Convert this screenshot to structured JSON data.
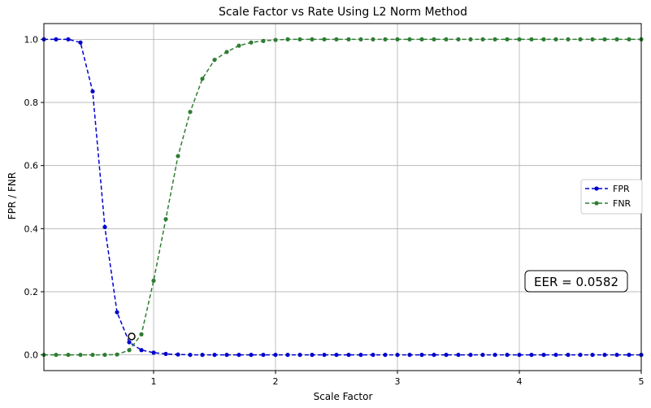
{
  "chart_data": {
    "type": "line",
    "title": "Scale Factor vs Rate Using L2 Norm Method",
    "xlabel": "Scale Factor",
    "ylabel": "FPR / FNR",
    "xlim": [
      0.1,
      5.0
    ],
    "ylim": [
      -0.05,
      1.05
    ],
    "xticks": [
      1,
      2,
      3,
      4,
      5
    ],
    "yticks": [
      0.0,
      0.2,
      0.4,
      0.6,
      0.8,
      1.0
    ],
    "xtick_labels": [
      "1",
      "2",
      "3",
      "4",
      "5"
    ],
    "ytick_labels": [
      "0.0",
      "0.2",
      "0.4",
      "0.6",
      "0.8",
      "1.0"
    ],
    "grid": true,
    "legend_position": "right",
    "x": [
      0.1,
      0.2,
      0.3,
      0.4,
      0.5,
      0.6,
      0.7,
      0.8,
      0.9,
      1.0,
      1.1,
      1.2,
      1.3,
      1.4,
      1.5,
      1.6,
      1.7,
      1.8,
      1.9,
      2.0,
      2.1,
      2.2,
      2.3,
      2.4,
      2.5,
      2.6,
      2.7,
      2.8,
      2.9,
      3.0,
      3.1,
      3.2,
      3.3,
      3.4,
      3.5,
      3.6,
      3.7,
      3.8,
      3.9,
      4.0,
      4.1,
      4.2,
      4.3,
      4.4,
      4.5,
      4.6,
      4.7,
      4.8,
      4.9,
      5.0
    ],
    "series": [
      {
        "name": "FPR",
        "color": "#0000cc",
        "values": [
          1.0,
          1.0,
          1.0,
          0.99,
          0.835,
          0.405,
          0.135,
          0.04,
          0.015,
          0.007,
          0.003,
          0.001,
          0.0,
          0.0,
          0.0,
          0.0,
          0.0,
          0.0,
          0.0,
          0.0,
          0.0,
          0.0,
          0.0,
          0.0,
          0.0,
          0.0,
          0.0,
          0.0,
          0.0,
          0.0,
          0.0,
          0.0,
          0.0,
          0.0,
          0.0,
          0.0,
          0.0,
          0.0,
          0.0,
          0.0,
          0.0,
          0.0,
          0.0,
          0.0,
          0.0,
          0.0,
          0.0,
          0.0,
          0.0,
          0.0
        ]
      },
      {
        "name": "FNR",
        "color": "#2e7d32",
        "values": [
          0.0,
          0.0,
          0.0,
          0.0,
          0.0,
          0.0,
          0.001,
          0.015,
          0.065,
          0.235,
          0.43,
          0.63,
          0.77,
          0.875,
          0.935,
          0.96,
          0.98,
          0.99,
          0.995,
          0.998,
          1.0,
          1.0,
          1.0,
          1.0,
          1.0,
          1.0,
          1.0,
          1.0,
          1.0,
          1.0,
          1.0,
          1.0,
          1.0,
          1.0,
          1.0,
          1.0,
          1.0,
          1.0,
          1.0,
          1.0,
          1.0,
          1.0,
          1.0,
          1.0,
          1.0,
          1.0,
          1.0,
          1.0,
          1.0,
          1.0
        ]
      }
    ],
    "eer_point": {
      "x": 0.82,
      "y": 0.0582
    },
    "annotation": "EER = 0.0582"
  }
}
